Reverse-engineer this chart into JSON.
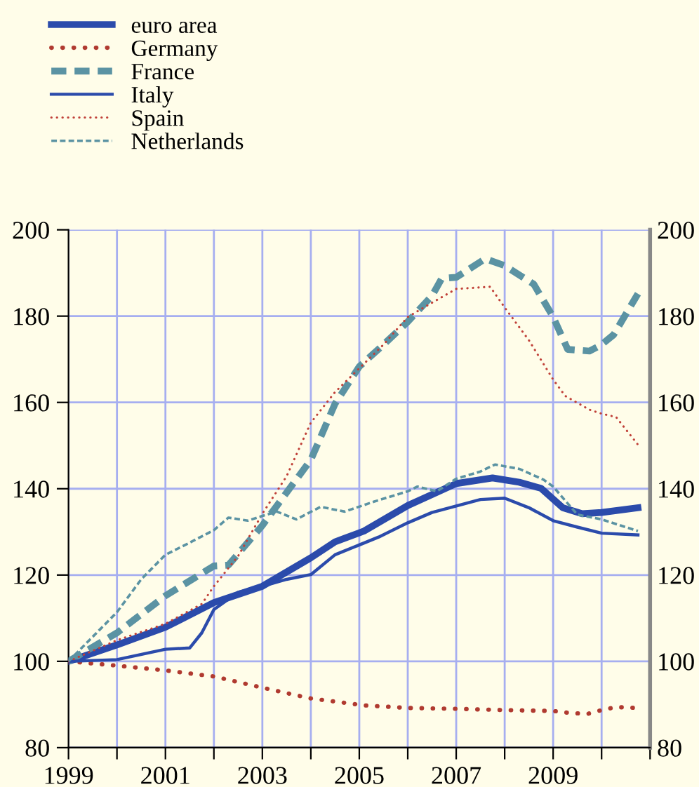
{
  "chart_data": {
    "type": "line",
    "xlim": [
      1999,
      2011
    ],
    "xticks": [
      1999,
      {
        "value": 2000,
        "label": null
      },
      2001,
      {
        "value": 2002,
        "label": null
      },
      2003,
      {
        "value": 2004,
        "label": null
      },
      2005,
      {
        "value": 2006,
        "label": null
      },
      2007,
      {
        "value": 2008,
        "label": null
      },
      2009,
      {
        "value": 2010,
        "label": null
      },
      {
        "value": 2011,
        "label": null
      }
    ],
    "ylim": [
      80,
      200
    ],
    "yticks": [
      80,
      100,
      120,
      140,
      160,
      180,
      200
    ],
    "y2lim": [
      80,
      200
    ],
    "y2ticks": [
      80,
      100,
      120,
      140,
      160,
      180,
      200
    ],
    "grid": true,
    "legend": "top left",
    "series": [
      {
        "name": "euro area",
        "color": "#2b4bab",
        "line_style": "solid",
        "x": [
          1999,
          2000,
          2001,
          2002,
          2003,
          2004,
          2004.5,
          2005.1,
          2006,
          2007,
          2007.75,
          2008.3,
          2008.75,
          2009.2,
          2009.6,
          2010,
          2010.75
        ],
        "values": [
          100,
          103.8,
          107.9,
          113.6,
          117.4,
          124,
          127.7,
          130.2,
          136.1,
          141.2,
          142.5,
          141.5,
          140.1,
          135.6,
          134.2,
          134.5,
          135.6
        ]
      },
      {
        "name": "Germany",
        "color": "#b03a30",
        "line_style": "dotted",
        "x": [
          1999,
          2000,
          2001,
          2002,
          2003,
          2004,
          2005.1,
          2006,
          2007,
          2008,
          2009,
          2009.3,
          2009.7,
          2010,
          2010.3,
          2010.75
        ],
        "values": [
          100,
          99.0,
          97.9,
          96.5,
          93.9,
          91.4,
          89.8,
          89.2,
          89.0,
          88.7,
          88.5,
          88.1,
          87.8,
          88.7,
          89.4,
          89.2
        ]
      },
      {
        "name": "France",
        "color": "#5b93a3",
        "line_style": "dashed",
        "x": [
          1999,
          2000,
          2001,
          2002,
          2002.3,
          2003,
          2004,
          2004.5,
          2005,
          2005.5,
          2006,
          2006.5,
          2006.7,
          2007,
          2007.6,
          2008,
          2008.6,
          2009,
          2009.3,
          2009.75,
          2010,
          2010.25,
          2010.75
        ],
        "values": [
          100,
          106.6,
          115.2,
          122.1,
          122.3,
          131.5,
          146.7,
          159.7,
          168.3,
          173.4,
          178.7,
          184.7,
          188.7,
          189.0,
          193.3,
          191.7,
          187.4,
          179.8,
          172.3,
          171.9,
          173.4,
          175.7,
          185.2
        ]
      },
      {
        "name": "Italy",
        "color": "#2b4bab",
        "line_style": "solid",
        "x": [
          1999,
          2000,
          2001,
          2001.5,
          2001.75,
          2002,
          2002.5,
          2003,
          2003.5,
          2004,
          2004.5,
          2005.4,
          2006,
          2006.5,
          2007,
          2007.5,
          2008,
          2008.5,
          2009,
          2009.5,
          2010,
          2010.75
        ],
        "values": [
          100,
          100.4,
          102.8,
          103.1,
          106.6,
          112.0,
          116,
          117.4,
          119,
          120.1,
          124.7,
          128.8,
          132.1,
          134.5,
          136,
          137.5,
          137.8,
          135.6,
          132.6,
          131.1,
          129.7,
          129.3
        ]
      },
      {
        "name": "Spain",
        "color": "#c04038",
        "line_style": "dotted",
        "x": [
          1999,
          2000,
          2001,
          2001.75,
          2002,
          2002.5,
          2003,
          2003.5,
          2004,
          2004.5,
          2005.1,
          2005.5,
          2006,
          2006.5,
          2007,
          2007.7,
          2008,
          2008.5,
          2009,
          2009.25,
          2009.75,
          2010,
          2010.3,
          2010.75
        ],
        "values": [
          100,
          104.9,
          108.7,
          113.3,
          117.4,
          124.4,
          134.2,
          142.9,
          155.3,
          162.4,
          169,
          173.4,
          179.8,
          183.1,
          186.3,
          186.8,
          182,
          174.4,
          165.3,
          161.5,
          158.3,
          157.4,
          156.6,
          150.2
        ]
      },
      {
        "name": "Netherlands",
        "color": "#5b93a3",
        "line_style": "dashed",
        "x": [
          1999,
          2000,
          2000.5,
          2001,
          2001.5,
          2002,
          2002.3,
          2002.7,
          2003,
          2003.3,
          2003.7,
          2004.2,
          2004.7,
          2005.3,
          2006,
          2006.2,
          2006.6,
          2007,
          2007.5,
          2007.8,
          2008.3,
          2008.8,
          2009,
          2009.5,
          2010,
          2010.75
        ],
        "values": [
          100,
          111.4,
          119,
          124.7,
          127.5,
          130.4,
          133.3,
          132.6,
          133.7,
          134.7,
          132.9,
          135.8,
          134.7,
          137,
          139.4,
          140.5,
          139.4,
          142.3,
          144,
          145.6,
          144.6,
          142.1,
          140.5,
          134,
          132.9,
          130.2
        ]
      }
    ]
  }
}
